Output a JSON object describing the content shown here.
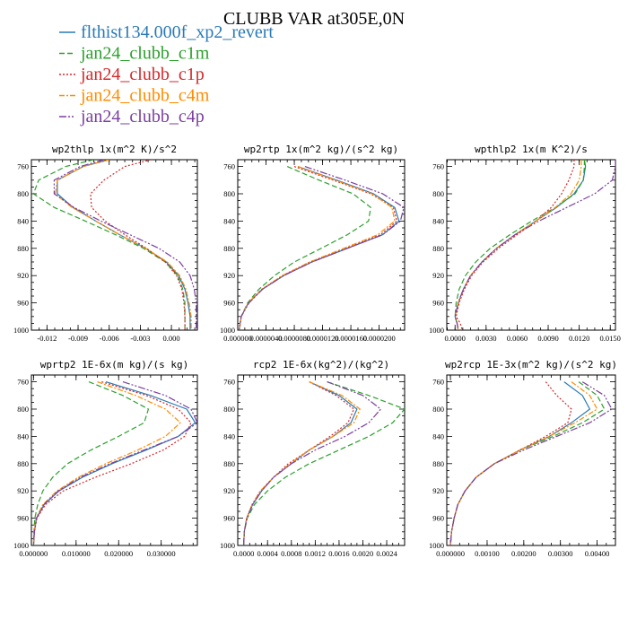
{
  "title": "CLUBB VAR at305E,0N",
  "legend": [
    {
      "label": "flthist134.000f_xp2_revert",
      "color": "#2a7ab6",
      "dash": "none"
    },
    {
      "label": "jan24_clubb_c1m",
      "color": "#2ca02c",
      "dash": "6,3"
    },
    {
      "label": "jan24_clubb_c1p",
      "color": "#d62728",
      "dash": "2,2"
    },
    {
      "label": "jan24_clubb_c4m",
      "color": "#ff8c00",
      "dash": "6,2,2,2"
    },
    {
      "label": "jan24_clubb_c4p",
      "color": "#7b3fa0",
      "dash": "8,2,2,2,2,2"
    }
  ],
  "chart_data": [
    {
      "type": "line",
      "title": "wp2thlp  1x(m^2 K)/s^2",
      "xlim": [
        -0.0135,
        0.0025
      ],
      "ylim": [
        1000,
        750
      ],
      "xticks": [
        -0.012,
        -0.009,
        -0.006,
        -0.003,
        0.0
      ],
      "xtick_labels": [
        "-0.012",
        "-0.009",
        "-0.006",
        "-0.003",
        "0.000"
      ],
      "yticks": [
        760,
        800,
        840,
        880,
        920,
        960,
        1000
      ],
      "y": [
        750,
        760,
        780,
        800,
        820,
        840,
        860,
        880,
        900,
        920,
        940,
        960,
        980,
        1000
      ],
      "series": [
        {
          "values": [
            -0.006,
            -0.0085,
            -0.011,
            -0.011,
            -0.0095,
            -0.0073,
            -0.005,
            -0.0025,
            -0.0005,
            0.0007,
            0.0013,
            0.0016,
            0.0018,
            0.0018
          ]
        },
        {
          "values": [
            -0.0075,
            -0.0102,
            -0.0128,
            -0.0133,
            -0.0113,
            -0.0083,
            -0.0054,
            -0.0027,
            -0.0006,
            0.0006,
            0.0011,
            0.0013,
            0.0013,
            0.0013
          ]
        },
        {
          "values": [
            -0.002,
            -0.0045,
            -0.0065,
            -0.0078,
            -0.0077,
            -0.0064,
            -0.0045,
            -0.0024,
            -0.0006,
            0.0005,
            0.001,
            0.0012,
            0.0013,
            0.0013
          ]
        },
        {
          "values": [
            -0.006,
            -0.0085,
            -0.011,
            -0.0112,
            -0.0096,
            -0.0073,
            -0.005,
            -0.0025,
            -0.0004,
            0.0008,
            0.0014,
            0.0017,
            0.0019,
            0.0019
          ]
        },
        {
          "values": [
            -0.0065,
            -0.0088,
            -0.0113,
            -0.0113,
            -0.0094,
            -0.0068,
            -0.004,
            -0.0012,
            0.0008,
            0.0018,
            0.0022,
            0.0024,
            0.0024,
            0.0024
          ]
        }
      ]
    },
    {
      "type": "line",
      "title": "wp2rtp  1x(m^2 kg)/(s^2 kg)",
      "xlim": [
        0.0,
        2.36e-05
      ],
      "ylim": [
        1000,
        750
      ],
      "xticks": [
        0.0,
        4e-06,
        8e-06,
        1.2e-05,
        1.6e-05,
        2e-05
      ],
      "xtick_labels": [
        "0.000000",
        "0.0000040",
        "0.0000080",
        "0.0000120",
        "0.0000160",
        "0.0000200"
      ],
      "yticks": [
        760,
        800,
        840,
        880,
        920,
        960,
        1000
      ],
      "y": [
        760,
        780,
        800,
        820,
        840,
        860,
        880,
        900,
        920,
        940,
        960,
        980,
        1000
      ],
      "series": [
        {
          "values": [
            8.5e-06,
            1.4e-05,
            1.92e-05,
            2.22e-05,
            2.28e-05,
            2.05e-05,
            1.55e-05,
            1.05e-05,
            6.5e-06,
            3.5e-06,
            1.5e-06,
            5e-07,
            2e-07
          ]
        },
        {
          "values": [
            7e-06,
            1.15e-05,
            1.63e-05,
            1.88e-05,
            1.85e-05,
            1.55e-05,
            1.18e-05,
            8e-06,
            5.2e-06,
            3e-06,
            1.4e-06,
            5e-07,
            2e-07
          ]
        },
        {
          "values": [
            8e-06,
            1.35e-05,
            1.88e-05,
            2.2e-05,
            2.25e-05,
            2.02e-05,
            1.53e-05,
            1.02e-05,
            6.3e-06,
            3.4e-06,
            1.5e-06,
            5e-07,
            2e-07
          ]
        },
        {
          "values": [
            8.5e-06,
            1.38e-05,
            1.9e-05,
            2.18e-05,
            2.22e-05,
            1.98e-05,
            1.5e-05,
            1.02e-05,
            6.3e-06,
            3.4e-06,
            1.5e-06,
            5e-07,
            2e-07
          ]
        },
        {
          "values": [
            9.5e-06,
            1.52e-05,
            2.05e-05,
            2.35e-05,
            2.3e-05,
            2.05e-05,
            1.55e-05,
            1.05e-05,
            6.5e-06,
            3.5e-06,
            1.6e-06,
            5e-07,
            2e-07
          ]
        }
      ]
    },
    {
      "type": "line",
      "title": "wpthlp2  1x(m K^2)/s",
      "xlim": [
        -0.0008,
        0.0155
      ],
      "ylim": [
        1000,
        750
      ],
      "xticks": [
        0.0,
        0.003,
        0.006,
        0.009,
        0.012,
        0.015
      ],
      "xtick_labels": [
        "0.0000",
        "0.0030",
        "0.0060",
        "0.0090",
        "0.0120",
        "0.0150"
      ],
      "yticks": [
        760,
        800,
        840,
        880,
        920,
        960,
        1000
      ],
      "y": [
        750,
        760,
        780,
        800,
        820,
        840,
        860,
        880,
        900,
        920,
        940,
        960,
        980,
        990,
        1000
      ],
      "series": [
        {
          "values": [
            0.0125,
            0.0126,
            0.0124,
            0.0115,
            0.0098,
            0.0078,
            0.0058,
            0.004,
            0.0026,
            0.0015,
            0.0008,
            0.0003,
            0.0,
            0.0002,
            0.0003
          ]
        },
        {
          "values": [
            0.0125,
            0.0125,
            0.0124,
            0.0116,
            0.0097,
            0.0074,
            0.0053,
            0.0034,
            0.002,
            0.001,
            0.0004,
            0.0001,
            0.0,
            0.0002,
            0.0003
          ]
        },
        {
          "values": [
            0.0115,
            0.0115,
            0.011,
            0.0103,
            0.0093,
            0.0078,
            0.006,
            0.0042,
            0.0027,
            0.0016,
            0.0009,
            0.0004,
            0.0001,
            0.0005,
            0.0007
          ]
        },
        {
          "values": [
            0.0122,
            0.0122,
            0.012,
            0.0112,
            0.0097,
            0.0078,
            0.0058,
            0.004,
            0.0026,
            0.0015,
            0.0008,
            0.0003,
            0.0,
            0.0002,
            0.0003
          ]
        },
        {
          "values": [
            0.0155,
            0.0155,
            0.0152,
            0.0135,
            0.0108,
            0.0081,
            0.0058,
            0.004,
            0.0026,
            0.0015,
            0.0008,
            0.0003,
            0.0,
            0.0002,
            0.0003
          ]
        }
      ]
    },
    {
      "type": "line",
      "title": "wprtp2  1E-6x(m kg)/(s kg)",
      "xlim": [
        -0.0005,
        0.0385
      ],
      "ylim": [
        1000,
        750
      ],
      "xticks": [
        0.0,
        0.01,
        0.02,
        0.03
      ],
      "xtick_labels": [
        "0.000000",
        "0.010000",
        "0.020000",
        "0.030000"
      ],
      "yticks": [
        760,
        800,
        840,
        880,
        920,
        960,
        1000
      ],
      "y": [
        760,
        780,
        800,
        820,
        840,
        860,
        880,
        900,
        920,
        940,
        960,
        980,
        1000
      ],
      "series": [
        {
          "values": [
            0.017,
            0.0275,
            0.036,
            0.038,
            0.034,
            0.0265,
            0.0185,
            0.0115,
            0.006,
            0.0025,
            0.0007,
            0.0002,
            0.0
          ]
        },
        {
          "values": [
            0.013,
            0.021,
            0.027,
            0.026,
            0.02,
            0.0135,
            0.008,
            0.0045,
            0.0022,
            0.001,
            0.0003,
            0.0001,
            0.0
          ]
        },
        {
          "values": [
            0.016,
            0.0265,
            0.034,
            0.037,
            0.0355,
            0.0305,
            0.023,
            0.0145,
            0.007,
            0.0028,
            0.0008,
            0.0002,
            0.0
          ]
        },
        {
          "values": [
            0.015,
            0.024,
            0.031,
            0.0345,
            0.031,
            0.0245,
            0.017,
            0.0105,
            0.0055,
            0.0022,
            0.0006,
            0.0001,
            0.0
          ]
        },
        {
          "values": [
            0.021,
            0.031,
            0.037,
            0.0385,
            0.034,
            0.026,
            0.018,
            0.011,
            0.0058,
            0.0024,
            0.0007,
            0.0002,
            0.0
          ]
        }
      ]
    },
    {
      "type": "line",
      "title": "rcp2  1E-6x(kg^2)/(kg^2)",
      "xlim": [
        -0.0001,
        0.0027
      ],
      "ylim": [
        1000,
        750
      ],
      "xticks": [
        0.0,
        0.0004,
        0.0008,
        0.0012,
        0.0016,
        0.002,
        0.0024
      ],
      "xtick_labels": [
        "0.0000",
        "0.0004",
        "0.0008",
        "0.0012",
        "0.0016",
        "0.0020",
        "0.0024"
      ],
      "yticks": [
        760,
        800,
        840,
        880,
        920,
        960,
        1000
      ],
      "y": [
        760,
        780,
        800,
        820,
        840,
        860,
        880,
        900,
        920,
        940,
        960,
        980,
        1000
      ],
      "series": [
        {
          "values": [
            0.0011,
            0.0016,
            0.0019,
            0.0018,
            0.0015,
            0.0011,
            0.0008,
            0.0005,
            0.0003,
            0.00015,
            5e-05,
            1e-05,
            0.0
          ]
        },
        {
          "values": [
            0.0014,
            0.0021,
            0.0027,
            0.0025,
            0.0021,
            0.0016,
            0.0011,
            0.0007,
            0.0004,
            0.00018,
            6e-05,
            1e-05,
            0.0
          ]
        },
        {
          "values": [
            0.0011,
            0.00155,
            0.00185,
            0.00175,
            0.00145,
            0.0011,
            0.00075,
            0.0005,
            0.00028,
            0.00014,
            5e-05,
            1e-05,
            0.0
          ]
        },
        {
          "values": [
            0.0011,
            0.00165,
            0.00195,
            0.00185,
            0.0015,
            0.0011,
            0.00078,
            0.0005,
            0.00028,
            0.00014,
            5e-05,
            1e-05,
            0.0
          ]
        },
        {
          "values": [
            0.0014,
            0.002,
            0.0023,
            0.0021,
            0.0017,
            0.0012,
            0.0008,
            0.0005,
            0.0003,
            0.00015,
            5e-05,
            1e-05,
            0.0
          ]
        }
      ]
    },
    {
      "type": "line",
      "title": "wp2rcp  1E-3x(m^2 kg)/(s^2 kg)",
      "xlim": [
        -0.0001,
        0.0045
      ],
      "ylim": [
        1000,
        750
      ],
      "xticks": [
        0.0,
        0.001,
        0.002,
        0.003,
        0.004
      ],
      "xtick_labels": [
        "0.000000",
        "0.00100",
        "0.00200",
        "0.00300",
        "0.00400"
      ],
      "yticks": [
        760,
        800,
        840,
        880,
        920,
        960,
        1000
      ],
      "y": [
        760,
        780,
        800,
        820,
        840,
        860,
        880,
        900,
        920,
        940,
        960,
        980,
        1000
      ],
      "series": [
        {
          "values": [
            0.0031,
            0.0036,
            0.0038,
            0.0033,
            0.0027,
            0.0019,
            0.0012,
            0.0007,
            0.0004,
            0.0002,
            0.0001,
            3e-05,
            0.0
          ]
        },
        {
          "values": [
            0.0035,
            0.004,
            0.0042,
            0.0036,
            0.0028,
            0.0019,
            0.0012,
            0.0007,
            0.0004,
            0.0002,
            0.0001,
            3e-05,
            0.0
          ]
        },
        {
          "values": [
            0.0026,
            0.0029,
            0.0033,
            0.0032,
            0.0026,
            0.0019,
            0.0012,
            0.0007,
            0.0004,
            0.0002,
            0.0001,
            3e-05,
            0.0
          ]
        },
        {
          "values": [
            0.0033,
            0.0038,
            0.004,
            0.0034,
            0.0027,
            0.0019,
            0.0012,
            0.0007,
            0.0004,
            0.0002,
            0.0001,
            3e-05,
            0.0
          ]
        },
        {
          "values": [
            0.0036,
            0.0042,
            0.0044,
            0.0038,
            0.0029,
            0.002,
            0.0012,
            0.0007,
            0.0004,
            0.0002,
            0.0001,
            3e-05,
            0.0
          ]
        }
      ]
    }
  ]
}
